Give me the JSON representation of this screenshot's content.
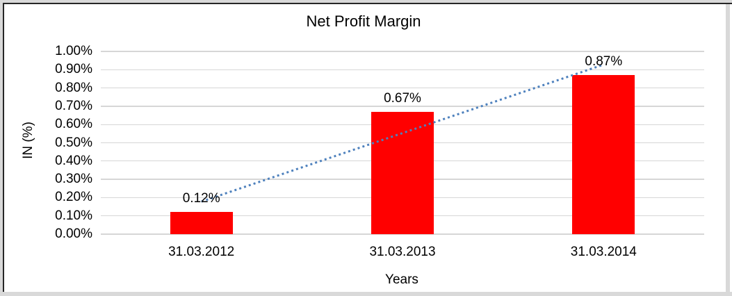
{
  "frame": {
    "outer_background": "#d9d9d9",
    "border_color": "#262626",
    "plot_background": "#ffffff"
  },
  "chart_data": {
    "type": "bar",
    "title": "Net Profit Margin",
    "xlabel": "Years",
    "ylabel": "IN (%)",
    "categories": [
      "31.03.2012",
      "31.03.2013",
      "31.03.2014"
    ],
    "series": [
      {
        "name": "Net Profit Margin",
        "values": [
          0.12,
          0.67,
          0.87
        ]
      }
    ],
    "data_labels": [
      "0.12%",
      "0.67%",
      "0.87%"
    ],
    "y_ticks": [
      "1.00%",
      "0.90%",
      "0.80%",
      "0.70%",
      "0.60%",
      "0.50%",
      "0.40%",
      "0.30%",
      "0.20%",
      "0.10%",
      "0.00%"
    ],
    "ylim": [
      0,
      1.0
    ],
    "grid": true,
    "legend_position": "none",
    "bar_color": "#ff0000",
    "gridline_color": "#d6d6d6",
    "text_color": "#000000",
    "trendline": {
      "style": "dotted",
      "color": "#4e81bd",
      "start_value": 0.178,
      "end_value": 0.928
    }
  }
}
